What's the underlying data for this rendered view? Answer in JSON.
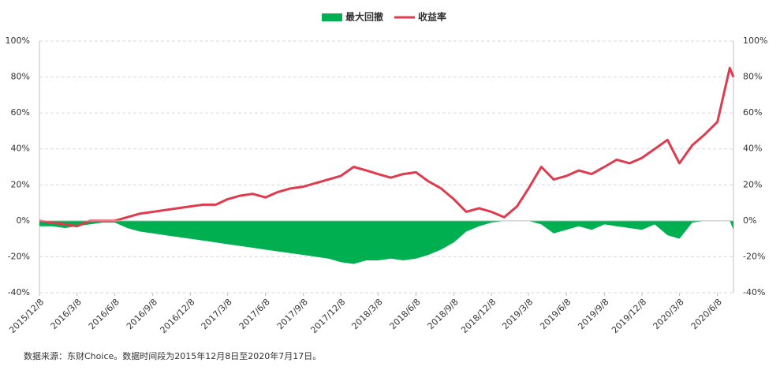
{
  "chart_data": {
    "type": "area-line",
    "footnote": "数据来源：东财Choice。数据时间段为2015年12月8日至2020年7月17日。",
    "x": [
      "2015/12/8",
      "2016/1/8",
      "2016/2/8",
      "2016/3/8",
      "2016/4/8",
      "2016/5/8",
      "2016/6/8",
      "2016/7/8",
      "2016/8/8",
      "2016/9/8",
      "2016/10/8",
      "2016/11/8",
      "2016/12/8",
      "2017/1/8",
      "2017/2/8",
      "2017/3/8",
      "2017/4/8",
      "2017/5/8",
      "2017/6/8",
      "2017/7/8",
      "2017/8/8",
      "2017/9/8",
      "2017/10/8",
      "2017/11/8",
      "2017/12/8",
      "2018/1/8",
      "2018/2/8",
      "2018/3/8",
      "2018/4/8",
      "2018/5/8",
      "2018/6/8",
      "2018/7/8",
      "2018/8/8",
      "2018/9/8",
      "2018/10/8",
      "2018/11/8",
      "2018/12/8",
      "2019/1/8",
      "2019/2/8",
      "2019/3/8",
      "2019/4/8",
      "2019/5/8",
      "2019/6/8",
      "2019/7/8",
      "2019/8/8",
      "2019/9/8",
      "2019/10/8",
      "2019/11/8",
      "2019/12/8",
      "2020/1/8",
      "2020/2/8",
      "2020/3/8",
      "2020/4/8",
      "2020/5/8",
      "2020/6/8",
      "2020/7/8",
      "2020/7/17"
    ],
    "xlim": [
      "2015/12/8",
      "2020/7/17"
    ],
    "xticks": [
      "2015/12/8",
      "2016/3/8",
      "2016/6/8",
      "2016/9/8",
      "2016/12/8",
      "2017/3/8",
      "2017/6/8",
      "2017/9/8",
      "2017/12/8",
      "2018/3/8",
      "2018/6/8",
      "2018/9/8",
      "2018/12/8",
      "2019/3/8",
      "2019/6/8",
      "2019/9/8",
      "2019/12/8",
      "2020/3/8",
      "2020/6/8"
    ],
    "ylim": [
      -40,
      100
    ],
    "yticks": [
      {
        "value": -40,
        "label": "-40%"
      },
      {
        "value": -20,
        "label": "-20%"
      },
      {
        "value": 0,
        "label": "0%"
      },
      {
        "value": 20,
        "label": "20%"
      },
      {
        "value": 40,
        "label": "40%"
      },
      {
        "value": 60,
        "label": "60%"
      },
      {
        "value": 80,
        "label": "80%"
      },
      {
        "value": 100,
        "label": "100%"
      }
    ],
    "y2lim": [
      -40,
      100
    ],
    "y2ticks": [
      {
        "value": -40,
        "label": "-40%"
      },
      {
        "value": -20,
        "label": "-20%"
      },
      {
        "value": 0,
        "label": "0%"
      },
      {
        "value": 20,
        "label": "20%"
      },
      {
        "value": 40,
        "label": "40%"
      },
      {
        "value": 60,
        "label": "60%"
      },
      {
        "value": 80,
        "label": "80%"
      },
      {
        "value": 100,
        "label": "100%"
      }
    ],
    "grid": true,
    "legend": "top",
    "series": [
      {
        "name": "最大回撤",
        "kind": "area",
        "color": "#00b050",
        "values": [
          -3,
          -3,
          -4,
          -3,
          -2,
          -1,
          -1,
          -4,
          -6,
          -7,
          -8,
          -9,
          -10,
          -11,
          -12,
          -13,
          -14,
          -15,
          -16,
          -17,
          -18,
          -19,
          -20,
          -21,
          -23,
          -24,
          -22,
          -22,
          -21,
          -22,
          -21,
          -19,
          -16,
          -12,
          -6,
          -3,
          -1,
          0,
          0,
          0,
          -2,
          -7,
          -5,
          -3,
          -5,
          -2,
          -3,
          -4,
          -5,
          -2,
          -8,
          -10,
          -1,
          0,
          0,
          0,
          -5
        ]
      },
      {
        "name": "收益率",
        "kind": "line",
        "color": "#e03a4e",
        "axis": "y2",
        "values": [
          0,
          -1,
          -2,
          -3,
          0,
          0,
          0,
          2,
          4,
          5,
          6,
          7,
          8,
          9,
          9,
          12,
          14,
          15,
          13,
          16,
          18,
          19,
          21,
          23,
          25,
          30,
          28,
          26,
          24,
          26,
          27,
          22,
          18,
          12,
          5,
          7,
          5,
          2,
          8,
          18,
          30,
          23,
          25,
          28,
          26,
          30,
          34,
          32,
          35,
          40,
          45,
          32,
          42,
          48,
          55,
          85,
          80
        ]
      }
    ]
  }
}
